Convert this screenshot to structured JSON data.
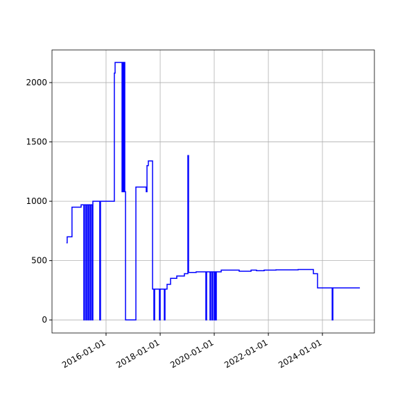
{
  "chart_data": {
    "type": "line",
    "drawstyle": "steps-post",
    "grid": true,
    "xlim": [
      "2014-01-01",
      "2025-12-03"
    ],
    "ylim": [
      -110,
      2275
    ],
    "xticks": [
      "2016-01-01",
      "2018-01-01",
      "2020-01-01",
      "2022-01-01",
      "2024-01-01"
    ],
    "yticks": [
      0,
      500,
      1000,
      1500,
      2000
    ],
    "x": [
      "2014-07-15",
      "2014-07-25",
      "2014-09-28",
      "2015-01-29",
      "2015-03-07",
      "2015-03-16",
      "2015-04-04",
      "2015-04-14",
      "2015-05-02",
      "2015-05-12",
      "2015-05-30",
      "2015-06-09",
      "2015-06-27",
      "2015-07-07",
      "2015-10-08",
      "2015-10-18",
      "2016-04-22",
      "2016-05-02",
      "2016-08-04",
      "2016-08-13",
      "2016-08-23",
      "2016-09-01",
      "2016-09-10",
      "2016-09-20",
      "2017-02-07",
      "2017-06-27",
      "2017-07-07",
      "2017-07-25",
      "2017-09-20",
      "2017-10-08",
      "2017-10-18",
      "2017-12-22",
      "2018-01-01",
      "2018-02-26",
      "2018-03-07",
      "2018-04-04",
      "2018-05-21",
      "2018-08-13",
      "2018-11-24",
      "2019-01-10",
      "2019-01-19",
      "2019-05-02",
      "2019-09-10",
      "2019-09-20",
      "2019-11-05",
      "2019-11-14",
      "2019-12-03",
      "2019-12-12",
      "2020-01-01",
      "2020-01-10",
      "2020-01-19",
      "2020-01-29",
      "2020-04-04",
      "2020-12-03",
      "2021-05-12",
      "2021-07-25",
      "2021-11-05",
      "2022-04-14",
      "2023-02-07",
      "2023-09-01",
      "2023-10-27",
      "2024-05-12",
      "2024-05-21",
      "2025-05-21"
    ],
    "series": [
      {
        "color": "#0000ff",
        "values": [
          650,
          700,
          950,
          970,
          0,
          970,
          0,
          970,
          0,
          970,
          0,
          970,
          0,
          1000,
          0,
          1000,
          2080,
          2170,
          1080,
          2170,
          1080,
          2170,
          1080,
          0,
          1120,
          1080,
          1300,
          1340,
          260,
          0,
          260,
          0,
          260,
          0,
          260,
          300,
          350,
          370,
          390,
          1385,
          400,
          405,
          0,
          405,
          0,
          405,
          0,
          405,
          0,
          405,
          0,
          405,
          420,
          410,
          420,
          415,
          420,
          422,
          425,
          390,
          270,
          0,
          270,
          270
        ]
      }
    ]
  }
}
